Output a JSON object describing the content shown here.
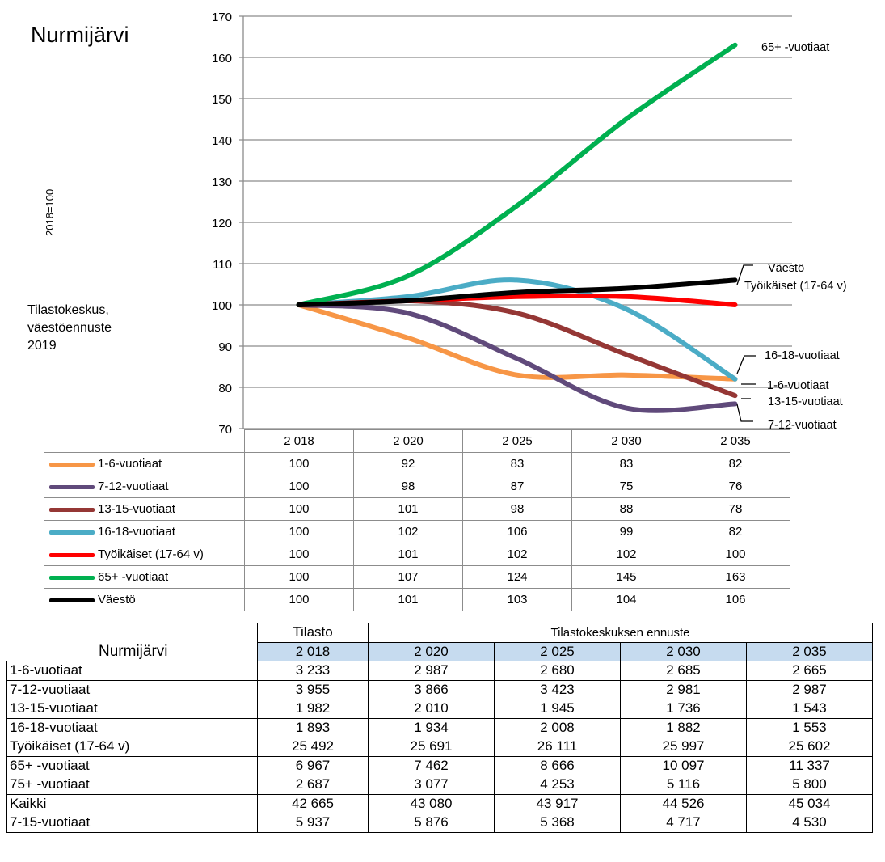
{
  "title": "Nurmijärvi",
  "source_note": [
    "Tilastokeskus,",
    "väestöennuste",
    "2019"
  ],
  "chart_data": {
    "type": "line",
    "ylabel": "2018=100",
    "ylim": [
      70,
      170
    ],
    "yticks": [
      70,
      80,
      90,
      100,
      110,
      120,
      130,
      140,
      150,
      160,
      170
    ],
    "grid": true,
    "categories": [
      "2 018",
      "2 020",
      "2 025",
      "2 030",
      "2 035"
    ],
    "series": [
      {
        "name": "1-6-vuotiaat",
        "color": "#f79646",
        "values": [
          100,
          92,
          83,
          83,
          82
        ]
      },
      {
        "name": "7-12-vuotiaat",
        "color": "#604a7b",
        "values": [
          100,
          98,
          87,
          75,
          76
        ]
      },
      {
        "name": "13-15-vuotiaat",
        "color": "#953735",
        "values": [
          100,
          101,
          98,
          88,
          78
        ]
      },
      {
        "name": "16-18-vuotiaat",
        "color": "#4bacc6",
        "values": [
          100,
          102,
          106,
          99,
          82
        ]
      },
      {
        "name": "Työikäiset (17-64 v)",
        "color": "#ff0000",
        "values": [
          100,
          101,
          102,
          102,
          100
        ]
      },
      {
        "name": "65+ -vuotiaat",
        "color": "#00b050",
        "values": [
          100,
          107,
          124,
          145,
          163
        ]
      },
      {
        "name": "Väestö",
        "color": "#000000",
        "values": [
          100,
          101,
          103,
          104,
          106
        ]
      }
    ],
    "end_labels": [
      "65+ -vuotiaat",
      "Väestö",
      "Työikäiset (17-64 v)",
      "16-18-vuotiaat",
      "1-6-vuotiaat",
      "13-15-vuotiaat",
      "7-12-vuotiaat"
    ]
  },
  "population_table": {
    "title": "Nurmijärvi",
    "group_headers": {
      "stat": "Tilasto",
      "forecast": "Tilastokeskuksen ennuste"
    },
    "years": [
      "2 018",
      "2 020",
      "2 025",
      "2 030",
      "2 035"
    ],
    "rows": [
      {
        "label": "1-6-vuotiaat",
        "values": [
          "3 233",
          "2 987",
          "2 680",
          "2 685",
          "2 665"
        ]
      },
      {
        "label": "7-12-vuotiaat",
        "values": [
          "3 955",
          "3 866",
          "3 423",
          "2 981",
          "2 987"
        ]
      },
      {
        "label": "13-15-vuotiaat",
        "values": [
          "1 982",
          "2 010",
          "1 945",
          "1 736",
          "1 543"
        ]
      },
      {
        "label": "16-18-vuotiaat",
        "values": [
          "1 893",
          "1 934",
          "2 008",
          "1 882",
          "1 553"
        ]
      },
      {
        "label": "Työikäiset (17-64 v)",
        "values": [
          "25 492",
          "25 691",
          "26 111",
          "25 997",
          "25 602"
        ]
      },
      {
        "label": "65+ -vuotiaat",
        "values": [
          "6 967",
          "7 462",
          "8 666",
          "10 097",
          "11 337"
        ]
      },
      {
        "label": "75+ -vuotiaat",
        "values": [
          "2 687",
          "3 077",
          "4 253",
          "5 116",
          "5 800"
        ]
      },
      {
        "label": "Kaikki",
        "values": [
          "42 665",
          "43 080",
          "43 917",
          "44 526",
          "45 034"
        ]
      },
      {
        "label": "7-15-vuotiaat",
        "values": [
          "5 937",
          "5 876",
          "5 368",
          "4 717",
          "4 530"
        ]
      }
    ]
  }
}
